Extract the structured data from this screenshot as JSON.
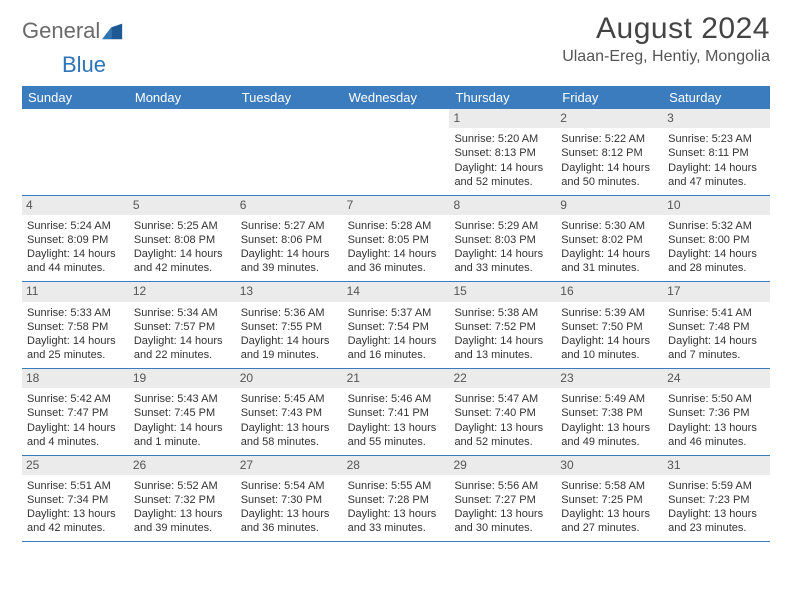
{
  "brand": {
    "word1": "General",
    "word2": "Blue"
  },
  "title": "August 2024",
  "location": "Ulaan-Ereg, Hentiy, Mongolia",
  "colors": {
    "header_bg": "#3b7cbf",
    "header_text": "#ffffff",
    "daynum_bg": "#ebebeb",
    "border": "#3b7cbf",
    "brand_gray": "#6a6a6a",
    "brand_blue": "#2e75b6"
  },
  "days_of_week": [
    "Sunday",
    "Monday",
    "Tuesday",
    "Wednesday",
    "Thursday",
    "Friday",
    "Saturday"
  ],
  "weeks": [
    [
      null,
      null,
      null,
      null,
      {
        "n": "1",
        "sr": "Sunrise: 5:20 AM",
        "ss": "Sunset: 8:13 PM",
        "dl": "Daylight: 14 hours and 52 minutes."
      },
      {
        "n": "2",
        "sr": "Sunrise: 5:22 AM",
        "ss": "Sunset: 8:12 PM",
        "dl": "Daylight: 14 hours and 50 minutes."
      },
      {
        "n": "3",
        "sr": "Sunrise: 5:23 AM",
        "ss": "Sunset: 8:11 PM",
        "dl": "Daylight: 14 hours and 47 minutes."
      }
    ],
    [
      {
        "n": "4",
        "sr": "Sunrise: 5:24 AM",
        "ss": "Sunset: 8:09 PM",
        "dl": "Daylight: 14 hours and 44 minutes."
      },
      {
        "n": "5",
        "sr": "Sunrise: 5:25 AM",
        "ss": "Sunset: 8:08 PM",
        "dl": "Daylight: 14 hours and 42 minutes."
      },
      {
        "n": "6",
        "sr": "Sunrise: 5:27 AM",
        "ss": "Sunset: 8:06 PM",
        "dl": "Daylight: 14 hours and 39 minutes."
      },
      {
        "n": "7",
        "sr": "Sunrise: 5:28 AM",
        "ss": "Sunset: 8:05 PM",
        "dl": "Daylight: 14 hours and 36 minutes."
      },
      {
        "n": "8",
        "sr": "Sunrise: 5:29 AM",
        "ss": "Sunset: 8:03 PM",
        "dl": "Daylight: 14 hours and 33 minutes."
      },
      {
        "n": "9",
        "sr": "Sunrise: 5:30 AM",
        "ss": "Sunset: 8:02 PM",
        "dl": "Daylight: 14 hours and 31 minutes."
      },
      {
        "n": "10",
        "sr": "Sunrise: 5:32 AM",
        "ss": "Sunset: 8:00 PM",
        "dl": "Daylight: 14 hours and 28 minutes."
      }
    ],
    [
      {
        "n": "11",
        "sr": "Sunrise: 5:33 AM",
        "ss": "Sunset: 7:58 PM",
        "dl": "Daylight: 14 hours and 25 minutes."
      },
      {
        "n": "12",
        "sr": "Sunrise: 5:34 AM",
        "ss": "Sunset: 7:57 PM",
        "dl": "Daylight: 14 hours and 22 minutes."
      },
      {
        "n": "13",
        "sr": "Sunrise: 5:36 AM",
        "ss": "Sunset: 7:55 PM",
        "dl": "Daylight: 14 hours and 19 minutes."
      },
      {
        "n": "14",
        "sr": "Sunrise: 5:37 AM",
        "ss": "Sunset: 7:54 PM",
        "dl": "Daylight: 14 hours and 16 minutes."
      },
      {
        "n": "15",
        "sr": "Sunrise: 5:38 AM",
        "ss": "Sunset: 7:52 PM",
        "dl": "Daylight: 14 hours and 13 minutes."
      },
      {
        "n": "16",
        "sr": "Sunrise: 5:39 AM",
        "ss": "Sunset: 7:50 PM",
        "dl": "Daylight: 14 hours and 10 minutes."
      },
      {
        "n": "17",
        "sr": "Sunrise: 5:41 AM",
        "ss": "Sunset: 7:48 PM",
        "dl": "Daylight: 14 hours and 7 minutes."
      }
    ],
    [
      {
        "n": "18",
        "sr": "Sunrise: 5:42 AM",
        "ss": "Sunset: 7:47 PM",
        "dl": "Daylight: 14 hours and 4 minutes."
      },
      {
        "n": "19",
        "sr": "Sunrise: 5:43 AM",
        "ss": "Sunset: 7:45 PM",
        "dl": "Daylight: 14 hours and 1 minute."
      },
      {
        "n": "20",
        "sr": "Sunrise: 5:45 AM",
        "ss": "Sunset: 7:43 PM",
        "dl": "Daylight: 13 hours and 58 minutes."
      },
      {
        "n": "21",
        "sr": "Sunrise: 5:46 AM",
        "ss": "Sunset: 7:41 PM",
        "dl": "Daylight: 13 hours and 55 minutes."
      },
      {
        "n": "22",
        "sr": "Sunrise: 5:47 AM",
        "ss": "Sunset: 7:40 PM",
        "dl": "Daylight: 13 hours and 52 minutes."
      },
      {
        "n": "23",
        "sr": "Sunrise: 5:49 AM",
        "ss": "Sunset: 7:38 PM",
        "dl": "Daylight: 13 hours and 49 minutes."
      },
      {
        "n": "24",
        "sr": "Sunrise: 5:50 AM",
        "ss": "Sunset: 7:36 PM",
        "dl": "Daylight: 13 hours and 46 minutes."
      }
    ],
    [
      {
        "n": "25",
        "sr": "Sunrise: 5:51 AM",
        "ss": "Sunset: 7:34 PM",
        "dl": "Daylight: 13 hours and 42 minutes."
      },
      {
        "n": "26",
        "sr": "Sunrise: 5:52 AM",
        "ss": "Sunset: 7:32 PM",
        "dl": "Daylight: 13 hours and 39 minutes."
      },
      {
        "n": "27",
        "sr": "Sunrise: 5:54 AM",
        "ss": "Sunset: 7:30 PM",
        "dl": "Daylight: 13 hours and 36 minutes."
      },
      {
        "n": "28",
        "sr": "Sunrise: 5:55 AM",
        "ss": "Sunset: 7:28 PM",
        "dl": "Daylight: 13 hours and 33 minutes."
      },
      {
        "n": "29",
        "sr": "Sunrise: 5:56 AM",
        "ss": "Sunset: 7:27 PM",
        "dl": "Daylight: 13 hours and 30 minutes."
      },
      {
        "n": "30",
        "sr": "Sunrise: 5:58 AM",
        "ss": "Sunset: 7:25 PM",
        "dl": "Daylight: 13 hours and 27 minutes."
      },
      {
        "n": "31",
        "sr": "Sunrise: 5:59 AM",
        "ss": "Sunset: 7:23 PM",
        "dl": "Daylight: 13 hours and 23 minutes."
      }
    ]
  ]
}
